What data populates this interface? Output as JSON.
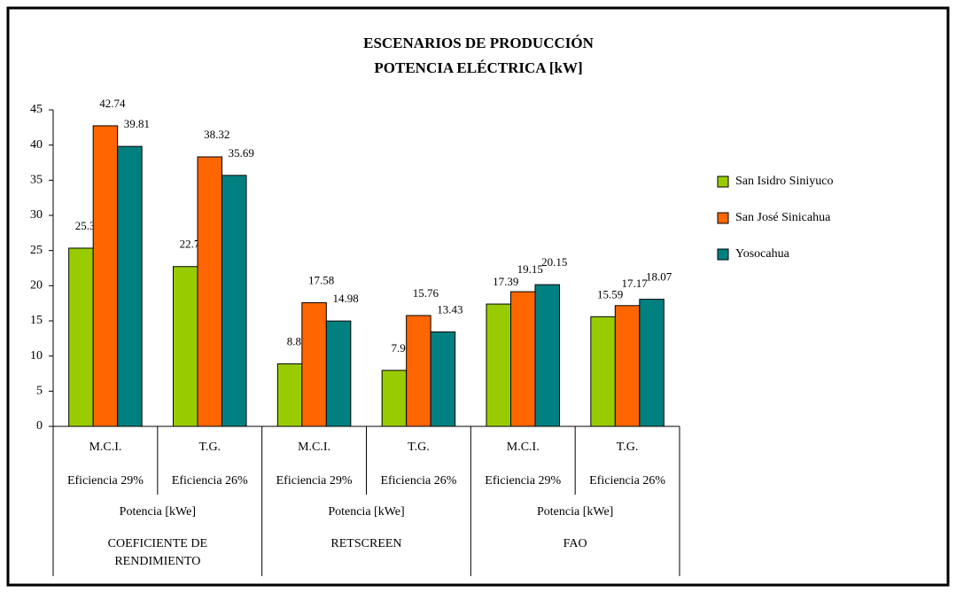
{
  "chart_data": {
    "type": "bar",
    "title": "ESCENARIOS DE PRODUCCIÓN",
    "subtitle": "POTENCIA ELÉCTRICA [kW]",
    "categories": [
      "M.C.I.",
      "T.G.",
      "M.C.I.",
      "T.G.",
      "M.C.I.",
      "T.G."
    ],
    "efficiency": [
      "Eficiencia 29%",
      "Eficiencia 26%",
      "Eficiencia 29%",
      "Eficiencia 26%",
      "Eficiencia 29%",
      "Eficiencia 26%"
    ],
    "measure": [
      "Potencia [kWe]",
      "Potencia [kWe]",
      "Potencia [kWe]"
    ],
    "groups": [
      "COEFICIENTE DE RENDIMIENTO",
      "RETSCREEN",
      "FAO"
    ],
    "series": [
      {
        "name": "San Isidro Siniyuco",
        "color": "#99cc00",
        "values": [
          25.34,
          22.72,
          8.89,
          7.96,
          17.39,
          15.59
        ]
      },
      {
        "name": "San José Sinicahua",
        "color": "#ff6600",
        "values": [
          42.74,
          38.32,
          17.58,
          15.76,
          19.15,
          17.17
        ]
      },
      {
        "name": "Yosocahua",
        "color": "#008080",
        "values": [
          39.81,
          35.69,
          14.98,
          13.43,
          20.15,
          18.07
        ]
      }
    ],
    "ylim": [
      0,
      45
    ],
    "yticks": [
      0,
      5,
      10,
      15,
      20,
      25,
      30,
      35,
      40,
      45
    ],
    "legend": "right"
  }
}
